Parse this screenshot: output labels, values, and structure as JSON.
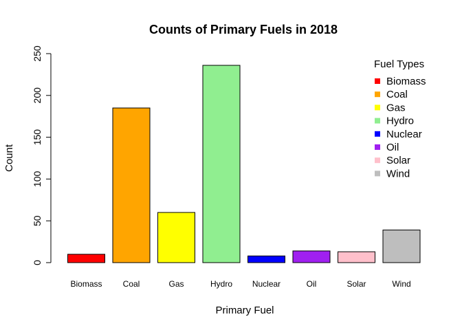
{
  "chart_data": {
    "type": "bar",
    "title": "Counts of Primary Fuels in 2018",
    "xlabel": "Primary Fuel",
    "ylabel": "Count",
    "categories": [
      "Biomass",
      "Coal",
      "Gas",
      "Hydro",
      "Nuclear",
      "Oil",
      "Solar",
      "Wind"
    ],
    "values": [
      10,
      185,
      60,
      236,
      8,
      14,
      13,
      39
    ],
    "colors": [
      "#ff0000",
      "#ffa500",
      "#ffff00",
      "#90ee90",
      "#0000ff",
      "#a020f0",
      "#ffc0cb",
      "#bebebe"
    ],
    "ylim": [
      0,
      250
    ],
    "yticks": [
      0,
      50,
      100,
      150,
      200,
      250
    ],
    "grid": false,
    "legend": {
      "title": "Fuel Types",
      "placement": "top-right",
      "entries": [
        "Biomass",
        "Coal",
        "Gas",
        "Hydro",
        "Nuclear",
        "Oil",
        "Solar",
        "Wind"
      ]
    }
  }
}
